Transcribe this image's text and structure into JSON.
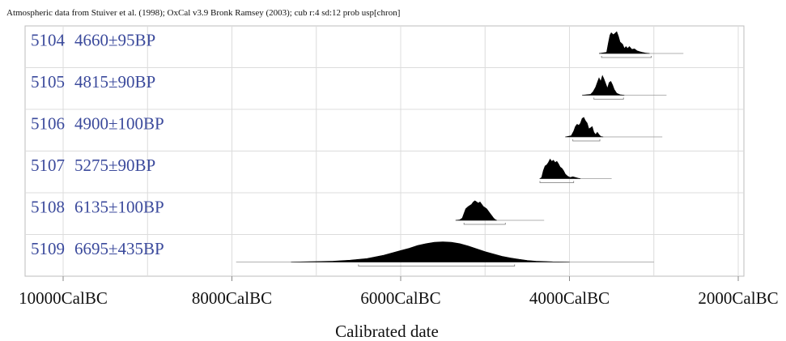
{
  "header": "Atmospheric data from Stuiver et al. (1998); OxCal v3.9 Bronk Ramsey (2003); cub r:4 sd:12 prob usp[chron]",
  "chart_data": {
    "type": "area",
    "xlabel": "Calibrated date",
    "ylabel": "",
    "xlim": [
      -10000,
      -2000
    ],
    "grid": true,
    "x_ticks": [
      {
        "value": -10000,
        "label": "10000CalBC"
      },
      {
        "value": -8000,
        "label": "8000CalBC"
      },
      {
        "value": -6000,
        "label": "6000CalBC"
      },
      {
        "value": -4000,
        "label": "4000CalBC"
      },
      {
        "value": -2000,
        "label": "2000CalBC"
      }
    ],
    "series": [
      {
        "lab_no": "5104",
        "date": "4660±95BP",
        "range": [
          -3650,
          -2650
        ],
        "hpd": [
          [
            -3620,
            -3030
          ]
        ],
        "density": [
          [
            -3650,
            0
          ],
          [
            -3560,
            0.05
          ],
          [
            -3540,
            0.45
          ],
          [
            -3520,
            0.8
          ],
          [
            -3505,
            0.9
          ],
          [
            -3480,
            0.82
          ],
          [
            -3460,
            0.88
          ],
          [
            -3440,
            0.95
          ],
          [
            -3420,
            0.75
          ],
          [
            -3400,
            0.5
          ],
          [
            -3370,
            0.4
          ],
          [
            -3350,
            0.22
          ],
          [
            -3330,
            0.3
          ],
          [
            -3310,
            0.22
          ],
          [
            -3290,
            0.3
          ],
          [
            -3260,
            0.18
          ],
          [
            -3230,
            0.2
          ],
          [
            -3200,
            0.12
          ],
          [
            -3170,
            0.08
          ],
          [
            -3140,
            0.05
          ],
          [
            -3100,
            0.02
          ],
          [
            -3050,
            0
          ]
        ]
      },
      {
        "lab_no": "5105",
        "date": "4815±90BP",
        "range": [
          -3850,
          -2850
        ],
        "hpd": [
          [
            -3710,
            -3360
          ]
        ],
        "density": [
          [
            -3850,
            0
          ],
          [
            -3750,
            0.04
          ],
          [
            -3720,
            0.15
          ],
          [
            -3690,
            0.35
          ],
          [
            -3670,
            0.55
          ],
          [
            -3650,
            0.75
          ],
          [
            -3630,
            0.6
          ],
          [
            -3610,
            0.85
          ],
          [
            -3590,
            0.7
          ],
          [
            -3570,
            0.5
          ],
          [
            -3550,
            0.3
          ],
          [
            -3530,
            0.55
          ],
          [
            -3510,
            0.6
          ],
          [
            -3490,
            0.45
          ],
          [
            -3470,
            0.25
          ],
          [
            -3440,
            0.08
          ],
          [
            -3400,
            0.02
          ],
          [
            -3350,
            0
          ]
        ]
      },
      {
        "lab_no": "5106",
        "date": "4900±100BP",
        "range": [
          -4050,
          -2900
        ],
        "hpd": [
          [
            -3960,
            -3640
          ]
        ],
        "density": [
          [
            -4050,
            0
          ],
          [
            -3980,
            0.05
          ],
          [
            -3950,
            0.25
          ],
          [
            -3930,
            0.45
          ],
          [
            -3910,
            0.55
          ],
          [
            -3890,
            0.5
          ],
          [
            -3870,
            0.6
          ],
          [
            -3850,
            0.8
          ],
          [
            -3830,
            0.85
          ],
          [
            -3810,
            0.7
          ],
          [
            -3790,
            0.6
          ],
          [
            -3770,
            0.35
          ],
          [
            -3750,
            0.4
          ],
          [
            -3730,
            0.45
          ],
          [
            -3710,
            0.2
          ],
          [
            -3690,
            0.1
          ],
          [
            -3670,
            0.2
          ],
          [
            -3650,
            0.1
          ],
          [
            -3630,
            0.02
          ],
          [
            -3600,
            0
          ]
        ]
      },
      {
        "lab_no": "5107",
        "date": "5275±90BP",
        "range": [
          -4350,
          -3500
        ],
        "hpd": [
          [
            -4350,
            -3950
          ]
        ],
        "density": [
          [
            -4350,
            0
          ],
          [
            -4330,
            0.05
          ],
          [
            -4310,
            0.35
          ],
          [
            -4290,
            0.55
          ],
          [
            -4270,
            0.6
          ],
          [
            -4250,
            0.7
          ],
          [
            -4230,
            0.85
          ],
          [
            -4210,
            0.75
          ],
          [
            -4190,
            0.8
          ],
          [
            -4170,
            0.7
          ],
          [
            -4150,
            0.75
          ],
          [
            -4130,
            0.65
          ],
          [
            -4110,
            0.5
          ],
          [
            -4090,
            0.45
          ],
          [
            -4070,
            0.35
          ],
          [
            -4050,
            0.2
          ],
          [
            -4020,
            0.1
          ],
          [
            -3990,
            0.05
          ],
          [
            -3960,
            0.08
          ],
          [
            -3930,
            0.05
          ],
          [
            -3900,
            0.02
          ],
          [
            -3870,
            0
          ]
        ]
      },
      {
        "lab_no": "5108",
        "date": "6135±100BP",
        "range": [
          -5350,
          -4300
        ],
        "hpd": [
          [
            -5250,
            -4760
          ]
        ],
        "density": [
          [
            -5350,
            0
          ],
          [
            -5300,
            0.02
          ],
          [
            -5270,
            0.1
          ],
          [
            -5250,
            0.3
          ],
          [
            -5230,
            0.5
          ],
          [
            -5200,
            0.6
          ],
          [
            -5180,
            0.65
          ],
          [
            -5160,
            0.7
          ],
          [
            -5140,
            0.8
          ],
          [
            -5120,
            0.85
          ],
          [
            -5100,
            0.8
          ],
          [
            -5080,
            0.75
          ],
          [
            -5060,
            0.8
          ],
          [
            -5040,
            0.7
          ],
          [
            -5020,
            0.6
          ],
          [
            -5000,
            0.55
          ],
          [
            -4980,
            0.5
          ],
          [
            -4960,
            0.4
          ],
          [
            -4940,
            0.3
          ],
          [
            -4920,
            0.2
          ],
          [
            -4900,
            0.1
          ],
          [
            -4880,
            0.03
          ],
          [
            -4860,
            0
          ]
        ]
      },
      {
        "lab_no": "5109",
        "date": "6695±435BP",
        "range": [
          -7950,
          -3000
        ],
        "hpd": [
          [
            -6500,
            -4650
          ]
        ],
        "density": [
          [
            -7300,
            0
          ],
          [
            -7000,
            0.02
          ],
          [
            -6800,
            0.04
          ],
          [
            -6600,
            0.08
          ],
          [
            -6400,
            0.15
          ],
          [
            -6200,
            0.3
          ],
          [
            -6000,
            0.5
          ],
          [
            -5900,
            0.6
          ],
          [
            -5800,
            0.72
          ],
          [
            -5700,
            0.8
          ],
          [
            -5600,
            0.86
          ],
          [
            -5500,
            0.88
          ],
          [
            -5400,
            0.86
          ],
          [
            -5300,
            0.8
          ],
          [
            -5200,
            0.7
          ],
          [
            -5100,
            0.58
          ],
          [
            -5000,
            0.45
          ],
          [
            -4900,
            0.35
          ],
          [
            -4800,
            0.25
          ],
          [
            -4700,
            0.18
          ],
          [
            -4600,
            0.12
          ],
          [
            -4500,
            0.07
          ],
          [
            -4400,
            0.04
          ],
          [
            -4200,
            0.01
          ],
          [
            -4000,
            0
          ]
        ]
      }
    ]
  }
}
